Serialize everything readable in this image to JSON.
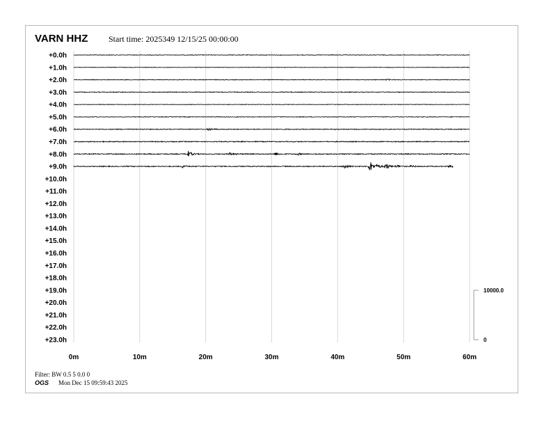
{
  "header": {
    "station": "VARN HHZ",
    "start_time": "Start time: 2025349 12/15/25 00:00:00"
  },
  "footer": {
    "filter": "Filter: BW 0.5 5 0.0 0",
    "agency": "OGS",
    "timestamp": "Mon Dec 15 09:59:43 2025"
  },
  "chart_data": {
    "type": "line",
    "title": "VARN HHZ",
    "row_labels": [
      "+0.0h",
      "+1.0h",
      "+2.0h",
      "+3.0h",
      "+4.0h",
      "+5.0h",
      "+6.0h",
      "+7.0h",
      "+8.0h",
      "+9.0h",
      "+10.0h",
      "+11.0h",
      "+12.0h",
      "+13.0h",
      "+14.0h",
      "+15.0h",
      "+16.0h",
      "+17.0h",
      "+18.0h",
      "+19.0h",
      "+20.0h",
      "+21.0h",
      "+22.0h",
      "+23.0h"
    ],
    "x_ticks": [
      "0m",
      "10m",
      "20m",
      "30m",
      "40m",
      "50m",
      "60m"
    ],
    "xlim": [
      0,
      60
    ],
    "grid": true,
    "amplitude_scale": {
      "labels": [
        "10000.0",
        "0"
      ],
      "range": [
        0,
        10000
      ]
    },
    "trace_color": "#000000",
    "grid_color": "#d8d8d8",
    "rows_with_data": 10,
    "last_row_end_minute": 57.5,
    "row_noise_amplitude": [
      60,
      50,
      60,
      70,
      50,
      60,
      80,
      90,
      100,
      90
    ],
    "events": [
      {
        "row": 2,
        "minute": 47.5,
        "amplitude": 120
      },
      {
        "row": 6,
        "minute": 20.5,
        "amplitude": 250
      },
      {
        "row": 8,
        "minute": 17.3,
        "amplitude": 600
      },
      {
        "row": 8,
        "minute": 23.7,
        "amplitude": 300
      },
      {
        "row": 8,
        "minute": 30.5,
        "amplitude": 250
      },
      {
        "row": 8,
        "minute": 34,
        "amplitude": 150
      },
      {
        "row": 9,
        "minute": 16.5,
        "amplitude": 250
      },
      {
        "row": 9,
        "minute": 41,
        "amplitude": 450
      },
      {
        "row": 9,
        "minute": 44.9,
        "amplitude": 1150
      },
      {
        "row": 9,
        "minute": 46,
        "amplitude": 350
      },
      {
        "row": 9,
        "minute": 47.3,
        "amplitude": 650
      },
      {
        "row": 9,
        "minute": 49,
        "amplitude": 250
      },
      {
        "row": 9,
        "minute": 51.2,
        "amplitude": 200
      },
      {
        "row": 9,
        "minute": 57,
        "amplitude": 300
      }
    ]
  }
}
